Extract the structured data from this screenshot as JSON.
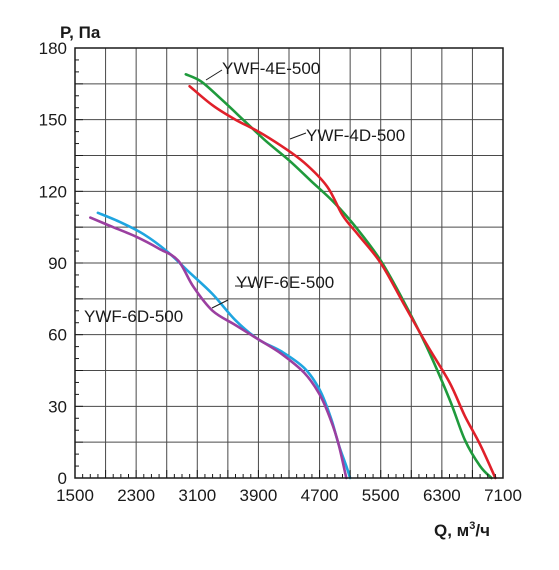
{
  "chart_data": {
    "type": "line",
    "title": "",
    "ylabel": "P, Па",
    "xlabel_prefix": "Q, м",
    "xlabel_sup": "3",
    "xlabel_suffix": "/ч",
    "xlim": [
      1500,
      7100
    ],
    "ylim": [
      0,
      180
    ],
    "x_ticks": [
      "1500",
      "2300",
      "3100",
      "3900",
      "4700",
      "5500",
      "6300",
      "7100"
    ],
    "y_ticks": [
      "0",
      "30",
      "60",
      "90",
      "120",
      "150",
      "180"
    ],
    "grid": true,
    "series": [
      {
        "name": "YWF-4E-500",
        "color": "#1f9a3c",
        "x": [
          2950,
          3150,
          3400,
          3700,
          4000,
          4300,
          4600,
          4900,
          5200,
          5500,
          5800,
          6100,
          6400,
          6600,
          6800,
          6950
        ],
        "y": [
          169,
          166,
          159,
          150,
          141,
          133,
          124,
          115,
          104,
          91,
          74,
          55,
          33,
          16,
          5,
          0
        ]
      },
      {
        "name": "YWF-4D-500",
        "color": "#e0202a",
        "x": [
          3000,
          3300,
          3600,
          3900,
          4200,
          4500,
          4800,
          5000,
          5200,
          5500,
          5800,
          6100,
          6400,
          6600,
          6800,
          7000
        ],
        "y": [
          164,
          156,
          150,
          145,
          139,
          132,
          122,
          110,
          102,
          90,
          73,
          56,
          40,
          26,
          14,
          0
        ]
      },
      {
        "name": "YWF-6E-500",
        "color": "#1fa5e0",
        "x": [
          1800,
          2100,
          2400,
          2700,
          3000,
          3300,
          3600,
          3900,
          4200,
          4500,
          4700,
          4850,
          4950,
          5050,
          5100
        ],
        "y": [
          111,
          107,
          102,
          95,
          86,
          77,
          66,
          58,
          53,
          46,
          37,
          25,
          14,
          5,
          0
        ]
      },
      {
        "name": "YWF-6D-500",
        "color": "#9b3fa0",
        "x": [
          1700,
          2000,
          2300,
          2600,
          2850,
          3050,
          3300,
          3600,
          3900,
          4200,
          4500,
          4700,
          4850,
          4950,
          5050
        ],
        "y": [
          109,
          105,
          101,
          96,
          91,
          80,
          70,
          64,
          58,
          52,
          44,
          35,
          24,
          14,
          0
        ]
      }
    ]
  }
}
